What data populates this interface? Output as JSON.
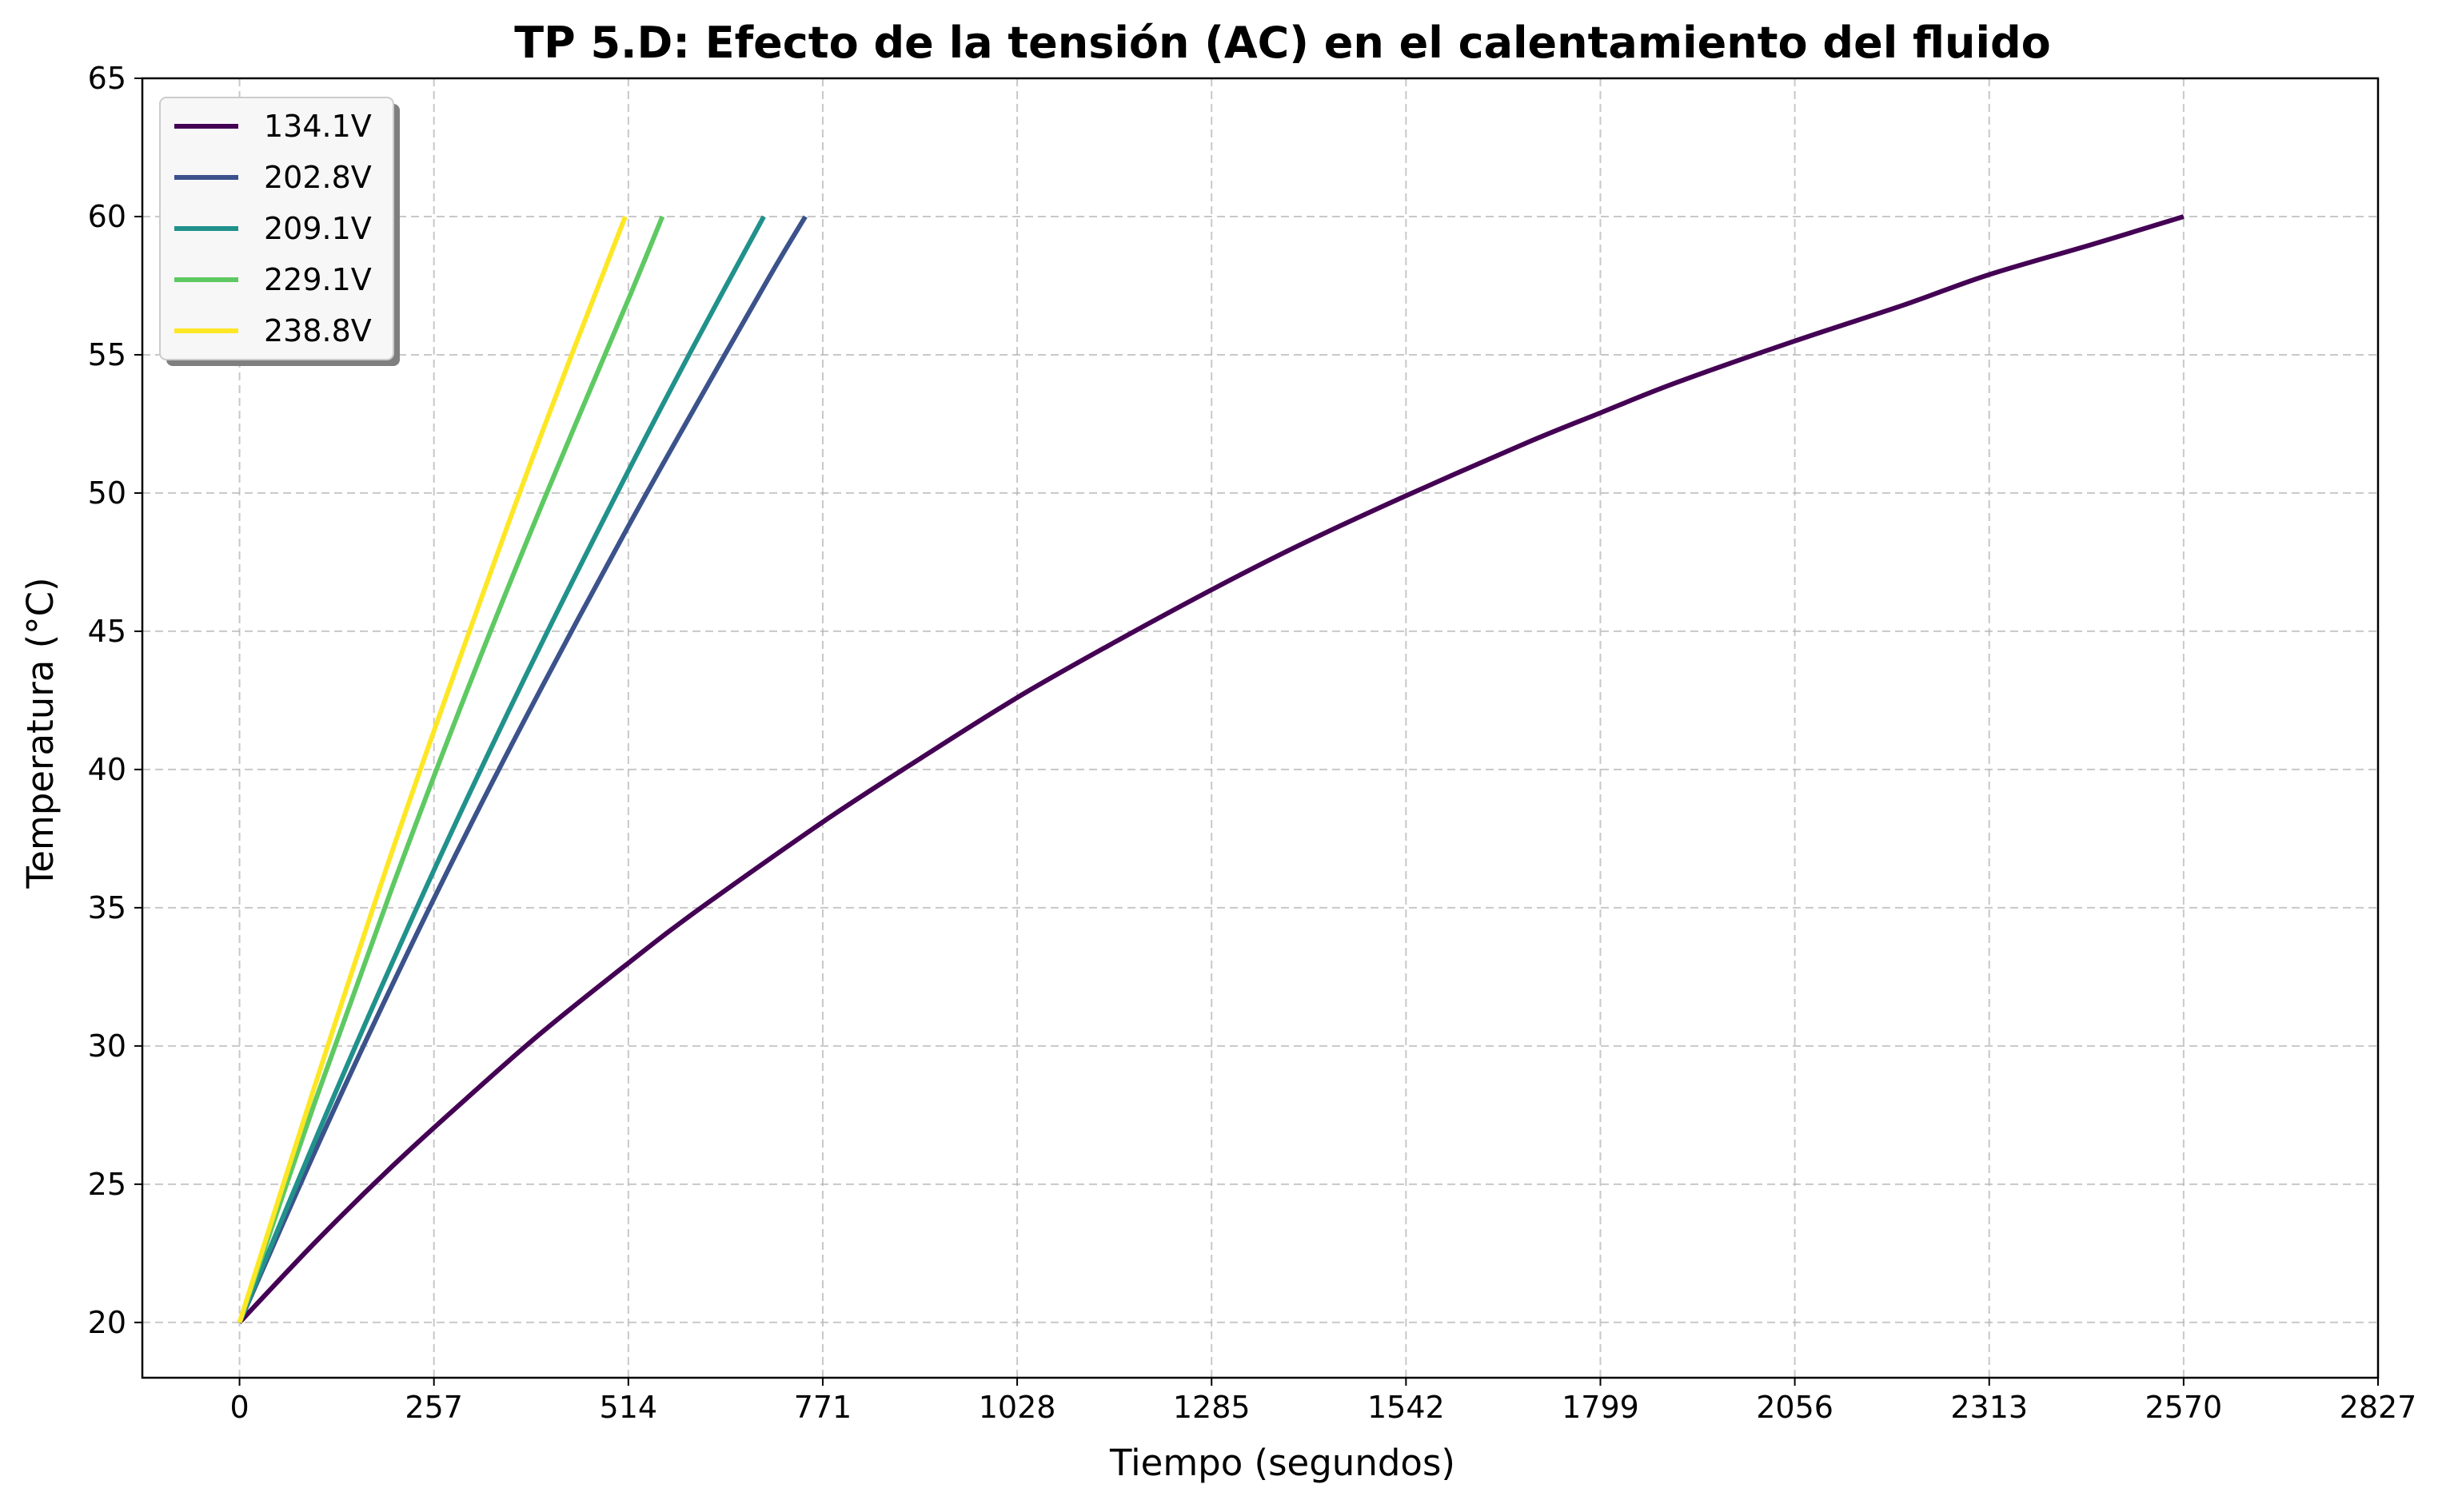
{
  "chart_data": {
    "type": "line",
    "title": "TP 5.D: Efecto de la tensión (AC) en el calentamiento del fluido",
    "xlabel": "Tiempo (segundos)",
    "ylabel": "Temperatura (°C)",
    "xlim": [
      -128.5,
      2827
    ],
    "ylim": [
      18,
      65
    ],
    "xticks": [
      0,
      257,
      514,
      771,
      1028,
      1285,
      1542,
      1799,
      2056,
      2313,
      2570,
      2827
    ],
    "xtick_labels": [
      "0",
      "257",
      "514",
      "771",
      "1028",
      "1285",
      "1542",
      "1799",
      "2056",
      "2313",
      "2570",
      "2827"
    ],
    "yticks": [
      20,
      25,
      30,
      35,
      40,
      45,
      50,
      55,
      60,
      65
    ],
    "ytick_labels": [
      "20",
      "25",
      "30",
      "35",
      "40",
      "45",
      "50",
      "55",
      "60",
      "65"
    ],
    "grid": true,
    "legend_position": "upper-left",
    "series": [
      {
        "name": "134.1V",
        "color": "#440154",
        "x": [
          0,
          100,
          200,
          300,
          400,
          514,
          600,
          771,
          900,
          1028,
          1150,
          1285,
          1400,
          1542,
          1700,
          1799,
          1900,
          2056,
          2200,
          2313,
          2450,
          2570
        ],
        "y": [
          20,
          22.9,
          25.6,
          28.1,
          30.5,
          33.0,
          34.8,
          38.1,
          40.4,
          42.6,
          44.5,
          46.5,
          48.1,
          49.9,
          51.8,
          52.9,
          54.0,
          55.5,
          56.8,
          57.9,
          59.0,
          60
        ]
      },
      {
        "name": "202.8V",
        "color": "#3b528b",
        "x": [
          0,
          100,
          200,
          300,
          400,
          514,
          600,
          700,
          748
        ],
        "y": [
          20,
          26.2,
          32.1,
          37.7,
          43.0,
          48.8,
          53.0,
          57.8,
          60
        ]
      },
      {
        "name": "209.1V",
        "color": "#21918c",
        "x": [
          0,
          100,
          200,
          300,
          400,
          514,
          600,
          693
        ],
        "y": [
          20,
          26.6,
          32.9,
          38.9,
          44.6,
          50.8,
          55.3,
          60
        ]
      },
      {
        "name": "229.1V",
        "color": "#5ec962",
        "x": [
          0,
          100,
          200,
          300,
          400,
          514,
          559
        ],
        "y": [
          20,
          28.0,
          35.6,
          42.8,
          49.6,
          57.0,
          60
        ]
      },
      {
        "name": "238.8V",
        "color": "#fde725",
        "x": [
          0,
          100,
          200,
          300,
          400,
          510
        ],
        "y": [
          20,
          28.6,
          36.9,
          44.7,
          52.2,
          60
        ]
      }
    ]
  }
}
